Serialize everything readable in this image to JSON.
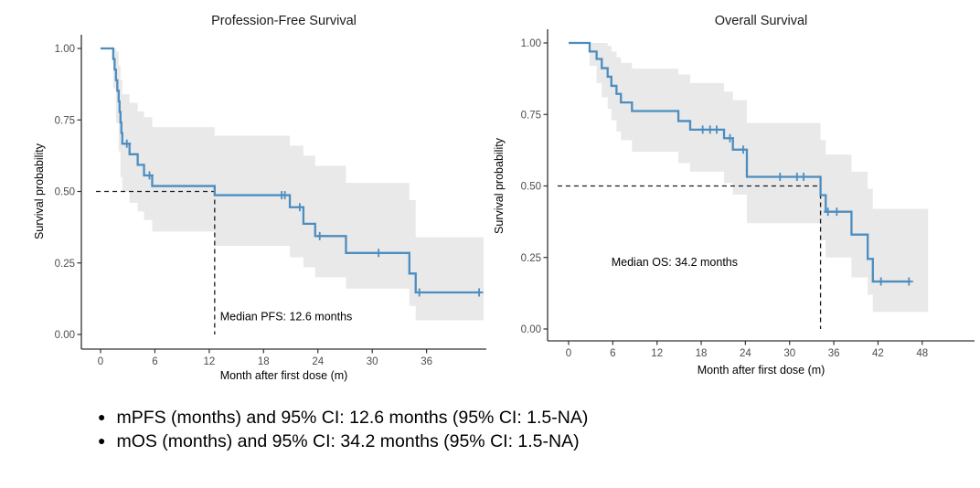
{
  "page": {
    "background": "#ffffff"
  },
  "colors": {
    "curve": "#4c8dbf",
    "band": "#e9e9e9",
    "dashed": "#1a1a1a",
    "axis": "#333333",
    "tick_label": "#4d4d4d",
    "text": "#000000"
  },
  "bullets": {
    "bullet_glyph": "●",
    "items": [
      "mPFS (months) and 95% CI: 12.6 months (95% CI: 1.5-NA)",
      "mOS (months) and 95% CI: 34.2 months (95% CI: 1.5-NA)"
    ]
  },
  "chart_data": [
    {
      "type": "line",
      "subtype": "kaplan-meier-step",
      "title": "Profession-Free Survival",
      "xlabel": "Month after first dose (m)",
      "ylabel": "Survival probability",
      "xticks": [
        0,
        6,
        12,
        18,
        24,
        30,
        36
      ],
      "ytick_values": [
        0,
        0.25,
        0.5,
        0.75,
        1
      ],
      "ytick_labels": [
        "0.00",
        "0.25",
        "0.50",
        "0.75",
        "1.00"
      ],
      "xlim": [
        -2.1,
        42.6
      ],
      "ylim": [
        0,
        1
      ],
      "grid": false,
      "legend": "none",
      "median": {
        "t": 12.6,
        "s": 0.5,
        "label": "Median PFS: 12.6 months",
        "label_t": 13.2,
        "label_s": 0.05,
        "hline_start_t": -0.5
      },
      "steps": [
        [
          0,
          1.0
        ],
        [
          1.4,
          0.963
        ],
        [
          1.55,
          0.926
        ],
        [
          1.7,
          0.889
        ],
        [
          1.85,
          0.852
        ],
        [
          2.0,
          0.815
        ],
        [
          2.1,
          0.778
        ],
        [
          2.2,
          0.741
        ],
        [
          2.3,
          0.704
        ],
        [
          2.4,
          0.667
        ],
        [
          3.2,
          0.63
        ],
        [
          4.1,
          0.593
        ],
        [
          4.8,
          0.556
        ],
        [
          5.7,
          0.519
        ],
        [
          12.6,
          0.487
        ],
        [
          20.9,
          0.445
        ],
        [
          22.4,
          0.387
        ],
        [
          23.7,
          0.344
        ],
        [
          27.1,
          0.285
        ],
        [
          34.1,
          0.213
        ],
        [
          34.8,
          0.147
        ]
      ],
      "end_t": 42.0,
      "censors": [
        [
          2.9,
          0.667
        ],
        [
          5.4,
          0.556
        ],
        [
          20.0,
          0.487
        ],
        [
          20.35,
          0.487
        ],
        [
          22.0,
          0.445
        ],
        [
          24.2,
          0.344
        ],
        [
          30.7,
          0.285
        ],
        [
          35.2,
          0.147
        ],
        [
          41.8,
          0.147
        ]
      ],
      "ribbon": [
        [
          0,
          1.0,
          1.0
        ],
        [
          1.4,
          0.86,
          1.0
        ],
        [
          1.7,
          0.74,
          0.99
        ],
        [
          2.0,
          0.64,
          0.94
        ],
        [
          2.2,
          0.55,
          0.89
        ],
        [
          2.4,
          0.5,
          0.84
        ],
        [
          3.2,
          0.46,
          0.81
        ],
        [
          4.1,
          0.43,
          0.78
        ],
        [
          4.8,
          0.4,
          0.76
        ],
        [
          5.7,
          0.36,
          0.725
        ],
        [
          12.6,
          0.31,
          0.695
        ],
        [
          20.9,
          0.27,
          0.66
        ],
        [
          22.4,
          0.235,
          0.625
        ],
        [
          23.7,
          0.2,
          0.59
        ],
        [
          27.1,
          0.16,
          0.53
        ],
        [
          34.1,
          0.1,
          0.47
        ],
        [
          34.8,
          0.05,
          0.34
        ]
      ],
      "ribbon_end": 42.3
    },
    {
      "type": "line",
      "subtype": "kaplan-meier-step",
      "title": "Overall Survival",
      "xlabel": "Month after first dose (m)",
      "ylabel": "Survival probability",
      "xticks": [
        0,
        6,
        12,
        18,
        24,
        30,
        36,
        42,
        48
      ],
      "ytick_values": [
        0,
        0.25,
        0.5,
        0.75,
        1
      ],
      "ytick_labels": [
        "0.00",
        "0.25",
        "0.50",
        "0.75",
        "1.00"
      ],
      "xlim": [
        -2.9,
        55.1
      ],
      "ylim": [
        0,
        1
      ],
      "grid": false,
      "legend": "none",
      "median": {
        "t": 34.2,
        "s": 0.5,
        "label": "Median OS: 34.2 months",
        "label_t": 5.8,
        "label_s": 0.22,
        "hline_start_t": -1.5
      },
      "steps": [
        [
          0,
          1.0
        ],
        [
          2.85,
          0.97
        ],
        [
          3.8,
          0.944
        ],
        [
          4.5,
          0.912
        ],
        [
          5.3,
          0.882
        ],
        [
          5.8,
          0.85
        ],
        [
          6.5,
          0.822
        ],
        [
          7.1,
          0.792
        ],
        [
          8.6,
          0.762
        ],
        [
          14.9,
          0.727
        ],
        [
          16.5,
          0.697
        ],
        [
          21.1,
          0.667
        ],
        [
          22.3,
          0.627
        ],
        [
          24.2,
          0.532
        ],
        [
          34.2,
          0.468
        ],
        [
          34.9,
          0.41
        ],
        [
          38.4,
          0.33
        ],
        [
          40.6,
          0.245
        ],
        [
          41.3,
          0.166
        ]
      ],
      "end_t": 46.4,
      "censors": [
        [
          18.2,
          0.697
        ],
        [
          19.2,
          0.697
        ],
        [
          20.1,
          0.697
        ],
        [
          21.9,
          0.667
        ],
        [
          23.7,
          0.627
        ],
        [
          28.7,
          0.532
        ],
        [
          31.0,
          0.532
        ],
        [
          31.9,
          0.532
        ],
        [
          35.2,
          0.41
        ],
        [
          36.4,
          0.41
        ],
        [
          42.4,
          0.166
        ],
        [
          46.2,
          0.166
        ]
      ],
      "ribbon": [
        [
          0,
          1.0,
          1.0
        ],
        [
          2.85,
          0.92,
          1.0
        ],
        [
          3.8,
          0.86,
          1.0
        ],
        [
          4.5,
          0.81,
          1.0
        ],
        [
          5.3,
          0.77,
          0.99
        ],
        [
          5.8,
          0.73,
          0.97
        ],
        [
          6.5,
          0.69,
          0.95
        ],
        [
          7.1,
          0.66,
          0.93
        ],
        [
          8.6,
          0.62,
          0.91
        ],
        [
          14.9,
          0.58,
          0.89
        ],
        [
          16.5,
          0.55,
          0.86
        ],
        [
          21.1,
          0.51,
          0.83
        ],
        [
          22.3,
          0.47,
          0.8
        ],
        [
          24.2,
          0.37,
          0.72
        ],
        [
          34.2,
          0.31,
          0.66
        ],
        [
          34.9,
          0.25,
          0.61
        ],
        [
          38.4,
          0.18,
          0.55
        ],
        [
          40.6,
          0.12,
          0.49
        ],
        [
          41.3,
          0.06,
          0.42
        ]
      ],
      "ribbon_end": 48.8
    }
  ]
}
